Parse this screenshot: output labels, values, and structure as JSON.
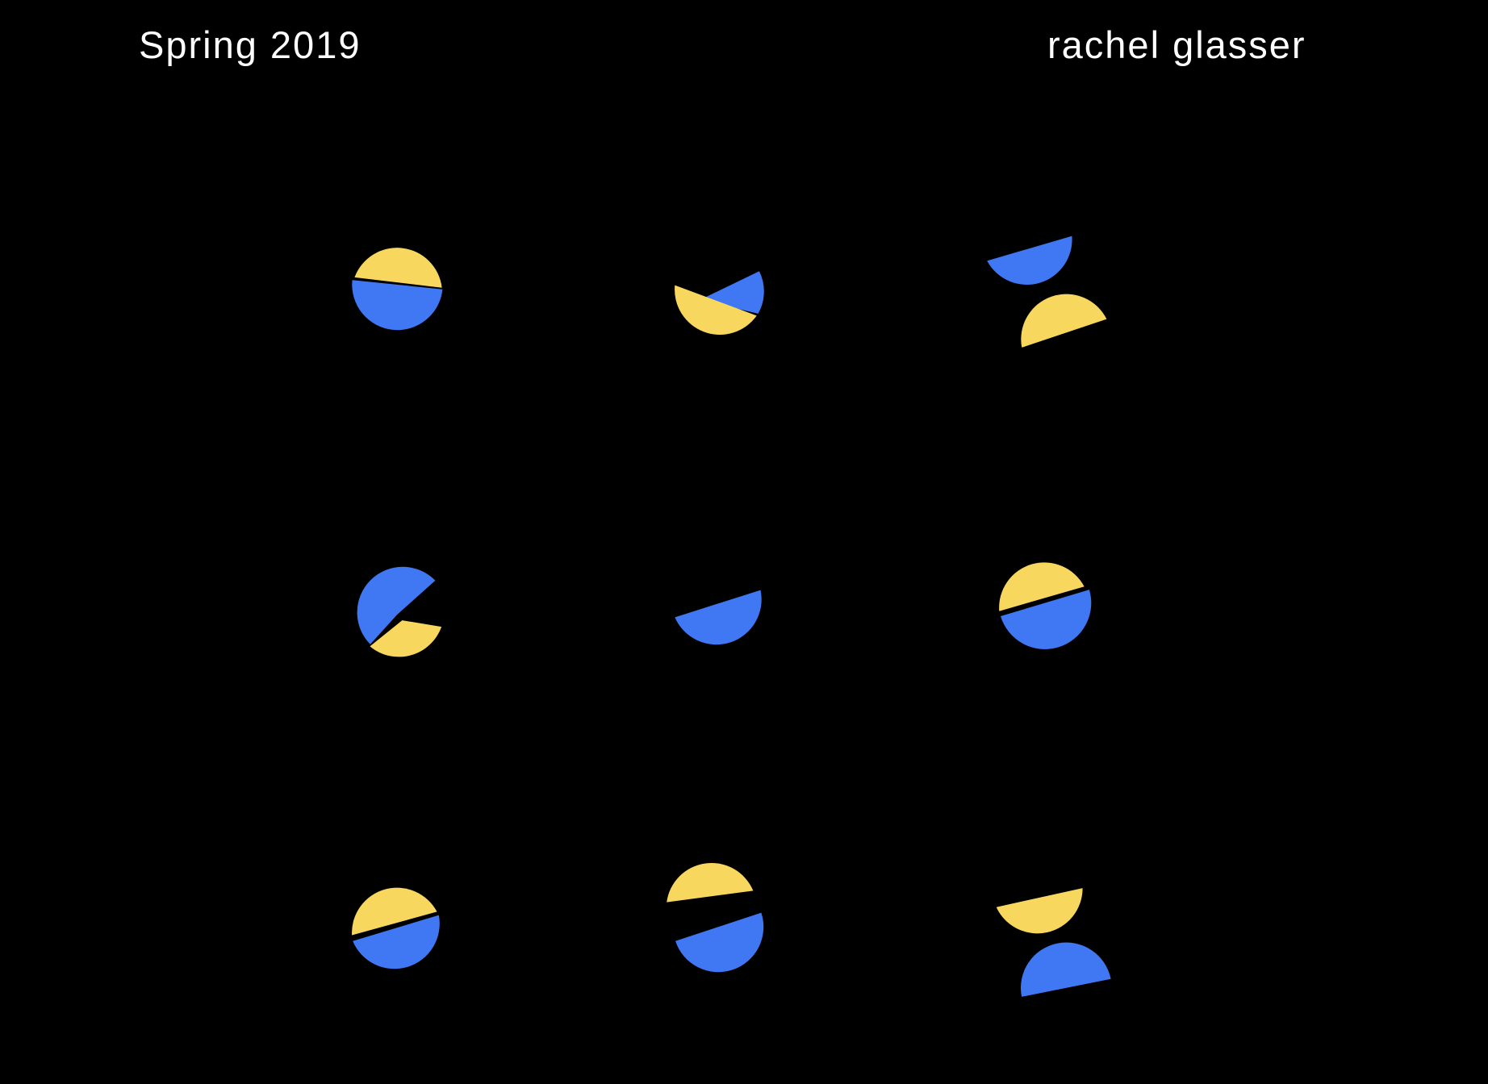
{
  "header": {
    "season": "Spring 2019",
    "author": "rachel glasser"
  },
  "palette": {
    "background": "#000000",
    "text": "#ffffff",
    "blue": "#3f78f2",
    "yellow": "#f8d75f"
  },
  "artwork": {
    "grid": "3x3",
    "shapes": [
      "split-circle-yellow-top-blue-bottom",
      "yellow-half-circle-with-blue-wedge",
      "blue-half-circle-over-yellow-half-circle-offset",
      "blue-circle-with-yellow-wedge",
      "blue-half-circle",
      "split-circle-yellow-top-blue-bottom-tilted",
      "split-circle-yellow-top-blue-bottom-tilted",
      "yellow-half-circle-over-blue-half-circle-separated",
      "yellow-half-circle-over-blue-half-circle-offset"
    ]
  }
}
